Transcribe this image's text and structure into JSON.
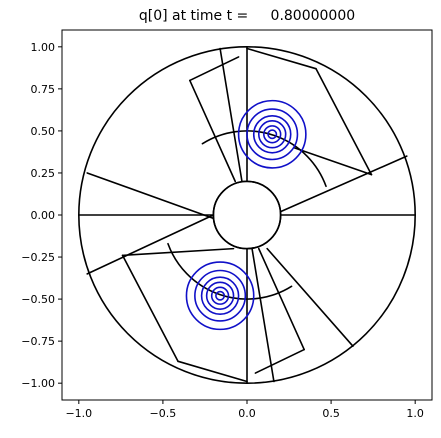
{
  "chart_data": {
    "type": "contour",
    "title": "q[0] at time t =     0.80000000",
    "xlabel": "",
    "ylabel": "",
    "xlim": [
      -1.1,
      1.1
    ],
    "ylim": [
      -1.1,
      1.1
    ],
    "x_ticks": [
      -1.0,
      -0.5,
      0.0,
      0.5,
      1.0
    ],
    "x_tick_labels": [
      "−1.0",
      "−0.5",
      "0.0",
      "0.5",
      "1.0"
    ],
    "y_ticks": [
      1.0,
      0.75,
      0.5,
      0.25,
      0.0,
      -0.25,
      -0.5,
      -0.75,
      -1.0
    ],
    "y_tick_labels": [
      "1.00",
      "0.75",
      "0.50",
      "0.25",
      "0.00",
      "−0.25",
      "−0.50",
      "−0.75",
      "−1.00"
    ],
    "grid": false,
    "aspect": "equal",
    "geometry": {
      "color": "#000000",
      "circles": [
        {
          "cx": 0,
          "cy": 0,
          "r": 1.0
        },
        {
          "cx": 0,
          "cy": 0,
          "r": 0.2
        }
      ],
      "segments": [
        {
          "x1": 0.2,
          "y1": 0.0,
          "x2": 1.0,
          "y2": 0.0
        },
        {
          "x1": 0.2,
          "y1": 0.02,
          "x2": 0.95,
          "y2": 0.35
        },
        {
          "x1": 0.28,
          "y1": 0.4,
          "x2": 0.74,
          "y2": 0.24
        },
        {
          "x1": 0.74,
          "y1": 0.24,
          "x2": 0.41,
          "y2": 0.87
        },
        {
          "x1": 0.41,
          "y1": 0.87,
          "x2": 0.0,
          "y2": 0.99
        },
        {
          "x1": 0.0,
          "y1": 0.2,
          "x2": 0.0,
          "y2": 1.0
        },
        {
          "x1": -0.03,
          "y1": 0.2,
          "x2": -0.16,
          "y2": 0.99
        },
        {
          "x1": -0.07,
          "y1": 0.2,
          "x2": -0.34,
          "y2": 0.8
        },
        {
          "x1": -0.34,
          "y1": 0.8,
          "x2": -0.05,
          "y2": 0.94
        },
        {
          "x1": -0.2,
          "y1": 0.0,
          "x2": -1.0,
          "y2": 0.0
        },
        {
          "x1": -0.2,
          "y1": -0.02,
          "x2": -0.95,
          "y2": 0.25
        },
        {
          "x1": -0.2,
          "y1": -0.0,
          "x2": -0.95,
          "y2": -0.35
        },
        {
          "x1": -0.08,
          "y1": -0.2,
          "x2": -0.74,
          "y2": -0.24
        },
        {
          "x1": -0.74,
          "y1": -0.24,
          "x2": -0.41,
          "y2": -0.87
        },
        {
          "x1": -0.41,
          "y1": -0.87,
          "x2": 0.0,
          "y2": -0.99
        },
        {
          "x1": 0.0,
          "y1": -0.2,
          "x2": 0.0,
          "y2": -1.0
        },
        {
          "x1": 0.03,
          "y1": -0.2,
          "x2": 0.16,
          "y2": -0.99
        },
        {
          "x1": 0.07,
          "y1": -0.2,
          "x2": 0.34,
          "y2": -0.8
        },
        {
          "x1": 0.34,
          "y1": -0.8,
          "x2": 0.05,
          "y2": -0.94
        },
        {
          "x1": 0.12,
          "y1": -0.2,
          "x2": 0.63,
          "y2": -0.78
        },
        {
          "x1": 0.2,
          "y1": 0.0,
          "x2": 0.2,
          "y2": 0.0
        }
      ],
      "arcs": [
        {
          "cx": 0,
          "cy": 0,
          "r": 0.5,
          "start_deg": 20,
          "end_deg": 122
        },
        {
          "cx": 0,
          "cy": 0,
          "r": 0.5,
          "start_deg": 200,
          "end_deg": 302
        }
      ]
    },
    "series": [
      {
        "color": "#1010c8",
        "levels": "contour",
        "cx": 0.15,
        "cy": 0.48,
        "radii": [
          0.2,
          0.15,
          0.11,
          0.08,
          0.05,
          0.025
        ]
      },
      {
        "color": "#1010c8",
        "levels": "contour",
        "cx": -0.16,
        "cy": -0.48,
        "radii": [
          0.2,
          0.15,
          0.11,
          0.08,
          0.05,
          0.025
        ]
      }
    ]
  }
}
